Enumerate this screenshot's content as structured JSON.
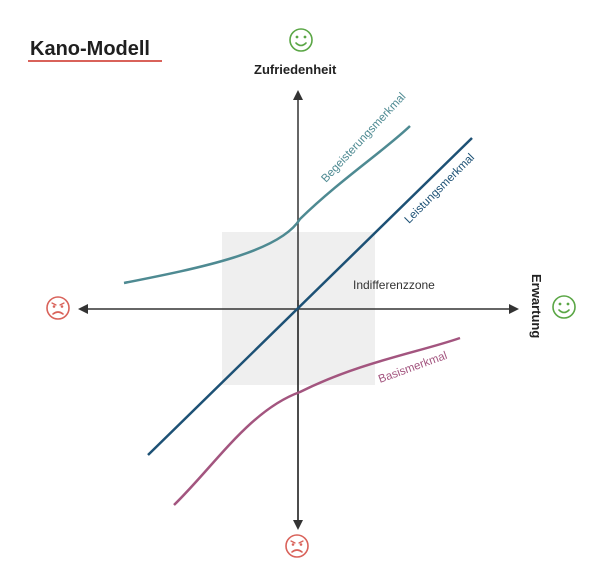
{
  "title": "Kano-Modell",
  "axes": {
    "y_label": "Zufriedenheit",
    "x_label": "Erwartung"
  },
  "zone_label": "Indifferenzzone",
  "curves": {
    "excitement": "Begeisterungsmerkmal",
    "performance": "Leistungsmerkmal",
    "basic": "Basismerkmal"
  },
  "colors": {
    "excitement": "#4e8a92",
    "performance": "#1d5175",
    "basic": "#a3557f",
    "happy": "#5aa645",
    "sad": "#d9625a",
    "title_underline": "#d9625a",
    "zone": "#efefef",
    "axis": "#333333"
  },
  "icons": {
    "top": "happy-face-icon",
    "right": "happy-face-icon",
    "left": "sad-face-icon",
    "bottom": "sad-face-icon"
  }
}
